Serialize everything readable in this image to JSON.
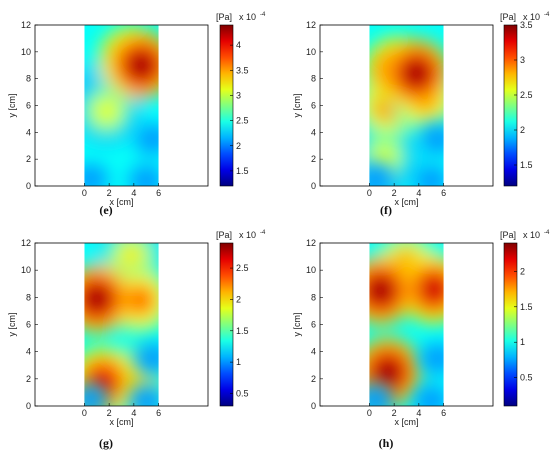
{
  "chart_data": [
    {
      "type": "heatmap",
      "caption": "(e)",
      "xlabel": "x [cm]",
      "ylabel": "y [cm]",
      "xlim": [
        -4,
        10
      ],
      "ylim": [
        0,
        12
      ],
      "xticks": [
        "0",
        "2",
        "4",
        "6"
      ],
      "yticks": [
        "0",
        "2",
        "4",
        "6",
        "8",
        "10",
        "12"
      ],
      "data_extent_x": [
        0,
        6
      ],
      "colorbar": {
        "unit": "[Pa]",
        "multiplier": "x 10",
        "exponent": "-4",
        "range": [
          1.2,
          4.4
        ],
        "ticks": [
          "1.5",
          "2",
          "2.5",
          "3",
          "3.5",
          "4"
        ]
      },
      "blobs": [
        {
          "x": 4.6,
          "y": 9.0,
          "value": 4.4
        },
        {
          "x": 3.8,
          "y": 9.4,
          "value": 4.1
        },
        {
          "x": 1.8,
          "y": 5.6,
          "value": 3.2
        },
        {
          "x": 2.0,
          "y": 7.0,
          "value": 3.0
        }
      ]
    },
    {
      "type": "heatmap",
      "caption": "(f)",
      "xlabel": "x [cm]",
      "ylabel": "y [cm]",
      "xlim": [
        -4,
        10
      ],
      "ylim": [
        0,
        12
      ],
      "xticks": [
        "0",
        "2",
        "4",
        "6"
      ],
      "yticks": [
        "0",
        "2",
        "4",
        "6",
        "8",
        "10",
        "12"
      ],
      "data_extent_x": [
        0,
        6
      ],
      "colorbar": {
        "unit": "[Pa]",
        "multiplier": "x 10",
        "exponent": "-4",
        "range": [
          1.2,
          3.5
        ],
        "ticks": [
          "1.5",
          "2",
          "2.5",
          "3",
          "3.5"
        ]
      },
      "blobs": [
        {
          "x": 3.8,
          "y": 8.4,
          "value": 3.5
        },
        {
          "x": 2.2,
          "y": 8.6,
          "value": 3.3
        },
        {
          "x": 1.5,
          "y": 6.0,
          "value": 3.0
        },
        {
          "x": 4.5,
          "y": 6.5,
          "value": 3.0
        },
        {
          "x": 1.2,
          "y": 2.2,
          "value": 2.6
        }
      ]
    },
    {
      "type": "heatmap",
      "caption": "(g)",
      "xlabel": "x [cm]",
      "ylabel": "y [cm]",
      "xlim": [
        -4,
        10
      ],
      "ylim": [
        0,
        12
      ],
      "xticks": [
        "0",
        "2",
        "4",
        "6"
      ],
      "yticks": [
        "0",
        "2",
        "4",
        "6",
        "8",
        "10",
        "12"
      ],
      "data_extent_x": [
        0,
        6
      ],
      "colorbar": {
        "unit": "[Pa]",
        "multiplier": "x 10",
        "exponent": "-4",
        "range": [
          0.3,
          2.9
        ],
        "ticks": [
          "0.5",
          "1",
          "1.5",
          "2",
          "2.5"
        ]
      },
      "blobs": [
        {
          "x": 1.0,
          "y": 7.9,
          "value": 2.9
        },
        {
          "x": 4.5,
          "y": 7.8,
          "value": 2.4
        },
        {
          "x": 1.5,
          "y": 1.8,
          "value": 2.7
        },
        {
          "x": 3.6,
          "y": 1.8,
          "value": 2.3
        },
        {
          "x": 3.8,
          "y": 11.0,
          "value": 2.0
        }
      ]
    },
    {
      "type": "heatmap",
      "caption": "(h)",
      "xlabel": "x [cm]",
      "ylabel": "y [cm]",
      "xlim": [
        -4,
        10
      ],
      "ylim": [
        0,
        12
      ],
      "xticks": [
        "0",
        "2",
        "4",
        "6"
      ],
      "yticks": [
        "0",
        "2",
        "4",
        "6",
        "8",
        "10",
        "12"
      ],
      "data_extent_x": [
        0,
        6
      ],
      "colorbar": {
        "unit": "[Pa]",
        "multiplier": "x 10",
        "exponent": "-4",
        "range": [
          0.1,
          2.4
        ],
        "ticks": [
          "0.5",
          "1",
          "1.5",
          "2"
        ]
      },
      "blobs": [
        {
          "x": 0.9,
          "y": 8.5,
          "value": 2.4
        },
        {
          "x": 5.2,
          "y": 8.6,
          "value": 2.3
        },
        {
          "x": 3.0,
          "y": 10.5,
          "value": 1.8
        },
        {
          "x": 1.5,
          "y": 2.5,
          "value": 2.4
        }
      ]
    }
  ]
}
